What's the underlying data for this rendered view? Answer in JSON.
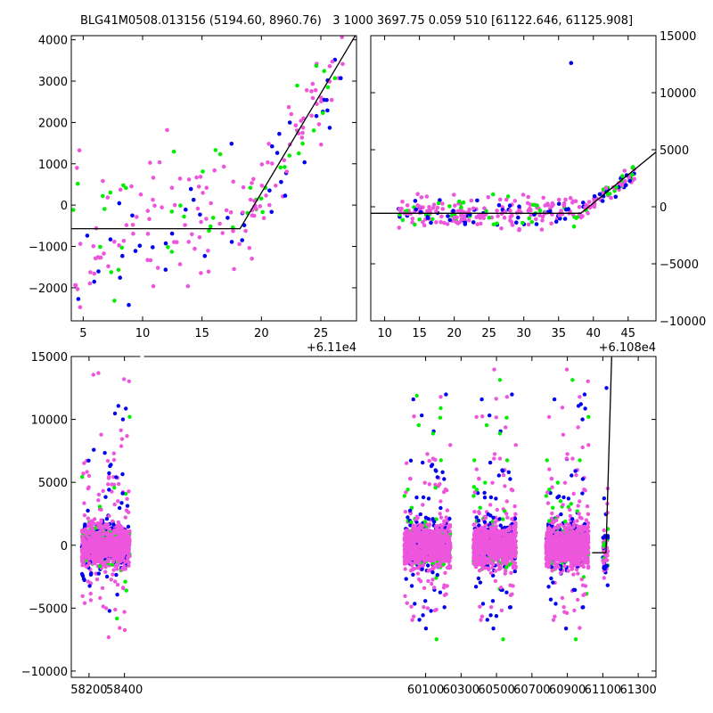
{
  "title": "BLG41M0508.013156 (5194.60, 8960.76)   3 1000 3697.75 0.059 510 [61122.646, 61125.908]",
  "colors": {
    "blue": "#0000ee",
    "green": "#00ee00",
    "magenta": "#ee55dd",
    "line": "#000000"
  },
  "chart_data": [
    {
      "name": "top-left-zoom",
      "type": "scatter",
      "xlim": [
        61104,
        61128
      ],
      "ylim": [
        -2800,
        4100
      ],
      "x_ticks": [
        5,
        10,
        15,
        20,
        25
      ],
      "x_tick_labels": [
        "5",
        "10",
        "15",
        "20",
        "25"
      ],
      "y_ticks": [
        -2000,
        -1000,
        0,
        1000,
        2000,
        3000,
        4000
      ],
      "y_tick_labels": [
        "−2000",
        "−1000",
        "0",
        "1000",
        "2000",
        "3000",
        "4000"
      ],
      "offset_label": "+6.11e4",
      "model_line": {
        "x": [
          61104,
          61118.2,
          61128
        ],
        "y": [
          -570,
          -570,
          4150
        ]
      }
    },
    {
      "name": "top-right-zoom",
      "type": "scatter",
      "xlim": [
        61088,
        61129
      ],
      "ylim": [
        -10000,
        15000
      ],
      "x_ticks": [
        10,
        15,
        20,
        25,
        30,
        35,
        40,
        45
      ],
      "x_tick_labels": [
        "10",
        "15",
        "20",
        "25",
        "30",
        "35",
        "40",
        "45"
      ],
      "y_ticks": [
        -10000,
        -5000,
        0,
        5000,
        10000,
        15000
      ],
      "y_tick_labels": [
        "−10000",
        "−5000",
        "0",
        "5000",
        "10000",
        "15000"
      ],
      "offset_label": "+6.108e4",
      "model_line": {
        "x": [
          61088,
          61118.2,
          61129
        ],
        "y": [
          -570,
          -570,
          4800
        ]
      }
    },
    {
      "name": "bottom-full",
      "type": "scatter",
      "xlim": [
        58100,
        61400
      ],
      "ylim": [
        -10500,
        15000
      ],
      "x_ticks": [
        58200,
        58400,
        60100,
        60300,
        60500,
        60700,
        60900,
        61100,
        61300
      ],
      "x_tick_labels": [
        "58200",
        "58400",
        "60100",
        "60300",
        "60500",
        "60700",
        "60900",
        "61100",
        "61300"
      ],
      "y_ticks": [
        -10000,
        -5000,
        0,
        5000,
        10000,
        15000
      ],
      "y_tick_labels": [
        "−10000",
        "−5000",
        "0",
        "5000",
        "10000",
        "15000"
      ],
      "seasons": [
        [
          58160,
          58430
        ],
        [
          59980,
          60240
        ],
        [
          60370,
          60610
        ],
        [
          60780,
          61020
        ],
        [
          61100,
          61130
        ]
      ],
      "model_line": {
        "x": [
          61040,
          61118,
          61150
        ],
        "y": [
          -600,
          -600,
          15000
        ]
      }
    }
  ]
}
